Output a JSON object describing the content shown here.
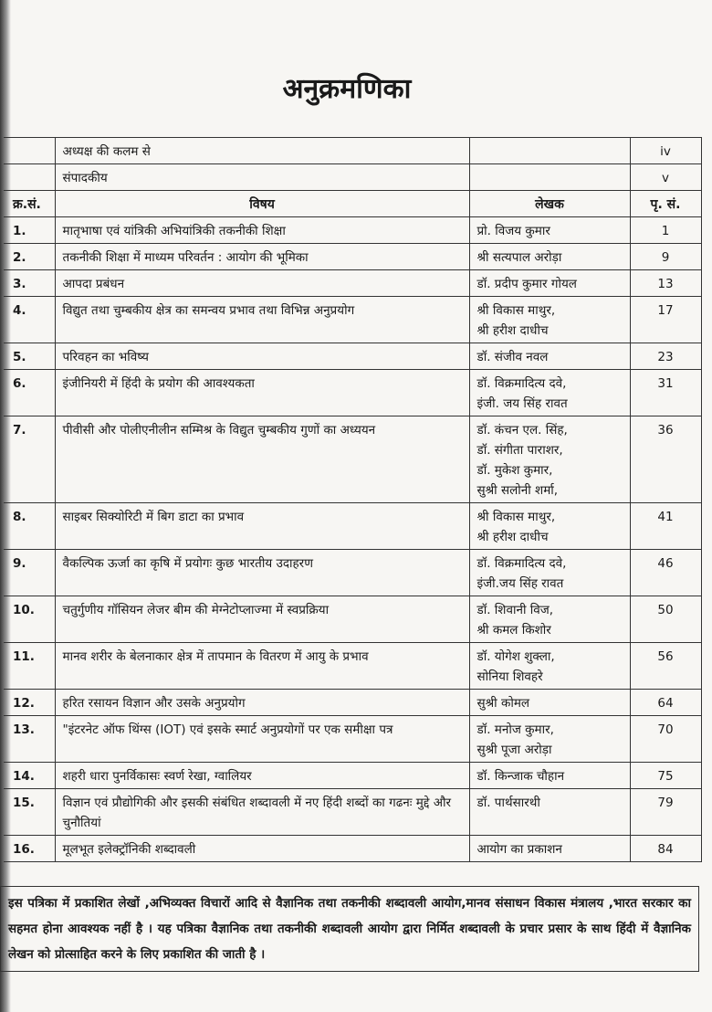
{
  "title": "अनुक्रमणिका",
  "preface": [
    {
      "subject": "अध्यक्ष की कलम से",
      "page": "iv"
    },
    {
      "subject": "संपादकीय",
      "page": "v"
    }
  ],
  "headers": {
    "sno": "क्र.सं.",
    "subject": "विषय",
    "author": "लेखक",
    "page": "पृ. सं."
  },
  "rows": [
    {
      "sno": "1.",
      "subject": "मातृभाषा एवं यांत्रिकी अभियांत्रिकी तकनीकी शिक्षा",
      "authors": [
        "प्रो. विजय कुमार"
      ],
      "page": "1"
    },
    {
      "sno": "2.",
      "subject": "तकनीकी शिक्षा में माध्यम परिवर्तन : आयोग की भूमिका",
      "authors": [
        "श्री सत्यपाल अरोड़ा"
      ],
      "page": "9"
    },
    {
      "sno": "3.",
      "subject": "आपदा प्रबंधन",
      "authors": [
        "डॉ. प्रदीप कुमार गोयल"
      ],
      "page": "13"
    },
    {
      "sno": "4.",
      "subject": "विद्युत तथा चुम्बकीय क्षेत्र का समन्वय प्रभाव तथा विभिन्न अनुप्रयोग",
      "authors": [
        "श्री विकास माथुर,",
        "श्री हरीश दाधीच"
      ],
      "page": "17"
    },
    {
      "sno": "5.",
      "subject": "परिवहन का भविष्य",
      "authors": [
        "डॉ. संजीव नवल"
      ],
      "page": "23"
    },
    {
      "sno": "6.",
      "subject": "इंजीनियरी में हिंदी के प्रयोग की आवश्यकता",
      "authors": [
        "डॉ. विक्रमादित्य दवे,",
        "इंजी. जय सिंह रावत"
      ],
      "page": "31"
    },
    {
      "sno": "7.",
      "subject": "पीवीसी और पोलीएनीलीन सम्मिश्र के विद्युत चुम्बकीय गुणों का अध्ययन",
      "authors": [
        "डॉ. कंचन एल. सिंह,",
        "डॉ. संगीता पाराशर,",
        "डॉ. मुकेश कुमार,",
        "सुश्री सलोनी शर्मा,"
      ],
      "page": "36"
    },
    {
      "sno": "8.",
      "subject": "साइबर सिक्योरिटी में बिग डाटा का प्रभाव",
      "authors": [
        "श्री विकास माथुर,",
        "श्री हरीश दाधीच"
      ],
      "page": "41"
    },
    {
      "sno": "9.",
      "subject": "वैकल्पिक ऊर्जा का कृषि में प्रयोगः कुछ भारतीय उदाहरण",
      "authors": [
        "डॉ. विक्रमादित्य दवे,",
        "इंजी.जय सिंह रावत"
      ],
      "page": "46"
    },
    {
      "sno": "10.",
      "subject": "चतुर्गुणीय गॉसियन लेजर बीम की मेग्नेटोप्लाज्मा में स्वप्रक्रिया",
      "authors": [
        "डॉ. शिवानी विज,",
        "श्री कमल किशोर"
      ],
      "page": "50"
    },
    {
      "sno": "11.",
      "subject": "मानव शरीर के बेलनाकार क्षेत्र में तापमान के वितरण में आयु के प्रभाव",
      "authors": [
        "डॉ. योगेश शुक्ला,",
        "सोनिया शिवहरे"
      ],
      "page": "56"
    },
    {
      "sno": "12.",
      "subject": "हरित रसायन विज्ञान और उसके अनुप्रयोग",
      "authors": [
        "सुश्री कोमल"
      ],
      "page": "64"
    },
    {
      "sno": "13.",
      "subject": "\"इंटरनेट ऑफ थिंग्स (IOT) एवं इसके स्मार्ट अनुप्रयोगों पर एक समीक्षा पत्र",
      "authors": [
        "डॉ. मनोज कुमार,",
        "सुश्री पूजा अरोड़ा"
      ],
      "page": "70"
    },
    {
      "sno": "14.",
      "subject": "शहरी धारा पुनर्विकासः स्वर्ण रेखा, ग्वालियर",
      "authors": [
        "डॉ. किन्जाक चौहान"
      ],
      "page": "75"
    },
    {
      "sno": "15.",
      "subject": "विज्ञान एवं प्रौद्योगिकी और इसकी संबंधित शब्दावली में नए हिंदी शब्दों का गढनः मुद्दे और चुनौतियां",
      "authors": [
        "डॉ. पार्थसारथी"
      ],
      "page": "79"
    },
    {
      "sno": "16.",
      "subject": "मूलभूत इलेक्ट्रॉनिकी शब्दावली",
      "authors": [
        "आयोग का प्रकाशन"
      ],
      "page": "84"
    }
  ],
  "note": "इस पत्रिका में प्रकाशित लेखों ,अभिव्यक्त विचारों आदि से वैज्ञानिक तथा तकनीकी शब्दावली आयोग,मानव संसाधन विकास मंत्रालय ,भारत सरकार का सहमत होना आवश्यक नहीं है । यह पत्रिका वैज्ञानिक तथा तकनीकी शब्दावली आयोग द्वारा निर्मित शब्दावली के प्रचार प्रसार के साथ हिंदी में वैज्ञानिक लेखन को प्रोत्साहित करने के लिए प्रकाशित की जाती है ।"
}
